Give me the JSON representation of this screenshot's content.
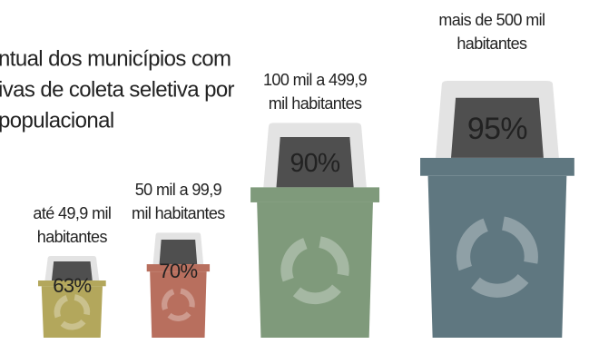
{
  "chart_data": {
    "type": "bin",
    "title_lines": [
      "ntual dos municípios com",
      "ivas de coleta seletiva por",
      "populacional"
    ],
    "categories": [
      [
        "até 49,9 mil",
        "habitantes"
      ],
      [
        "50 mil a 99,9",
        "mil habitantes"
      ],
      [
        "100 mil a 499,9",
        "mil habitantes"
      ],
      [
        "mais de 500 mil",
        "habitantes"
      ]
    ],
    "values": [
      63,
      70,
      90,
      95
    ],
    "value_labels": [
      "63%",
      "70%",
      "90%",
      "95%"
    ],
    "colors": [
      "#b3a75c",
      "#b86f5e",
      "#7f9a7b",
      "#5f7780"
    ]
  }
}
